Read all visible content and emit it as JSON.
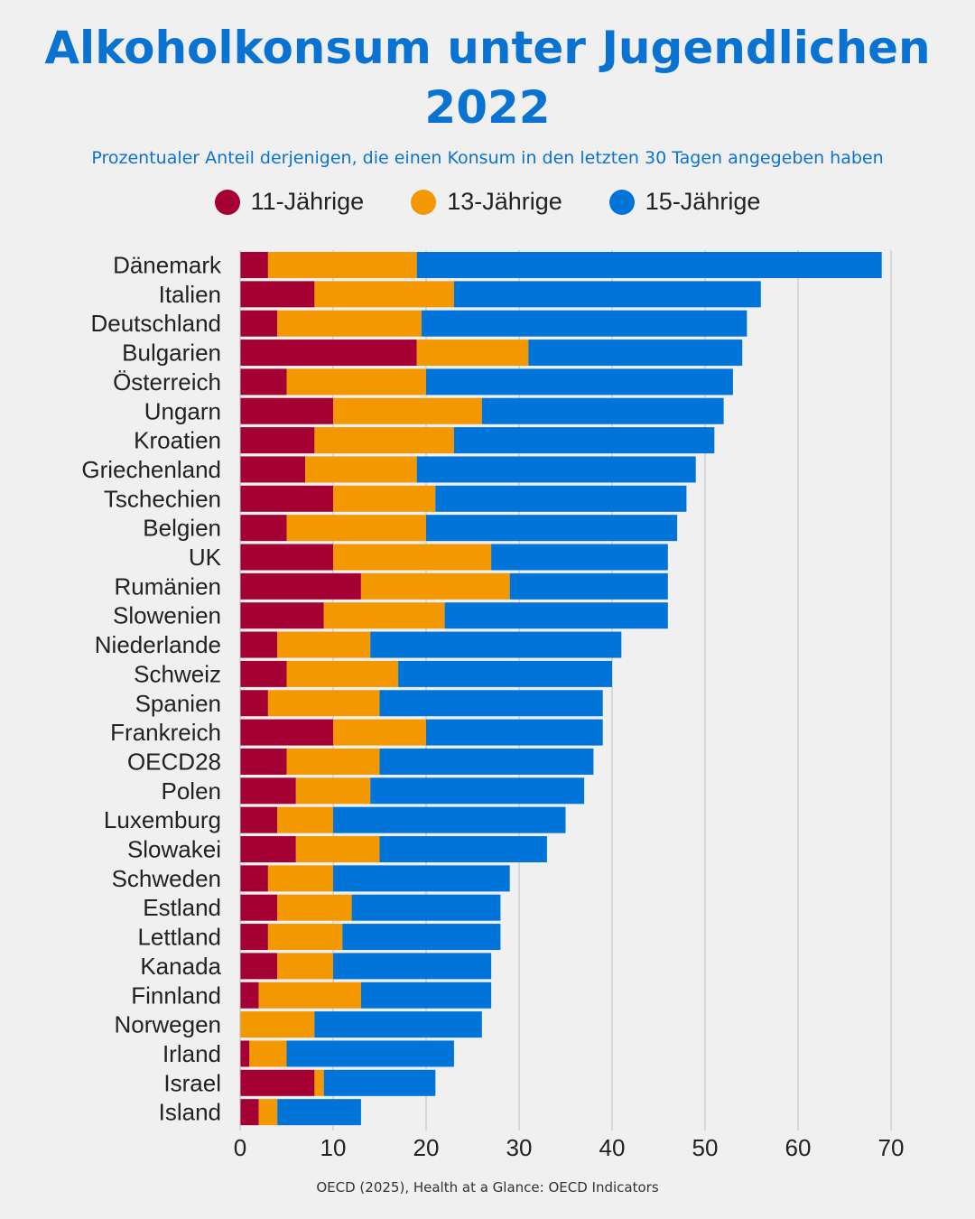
{
  "chart_data": {
    "type": "bar",
    "orientation": "horizontal",
    "stacked": true,
    "title": "Alkoholkonsum unter Jugendlichen 2022",
    "subtitle": "Prozentualer Anteil derjenigen, die einen Konsum in den letzten 30 Tagen angegeben haben",
    "source": "OECD (2025), Health at a Glance: OECD Indicators",
    "legend_position": "top",
    "grid": true,
    "xlim": [
      0,
      70
    ],
    "xticks": [
      "0",
      "10",
      "20",
      "30",
      "40",
      "50",
      "60",
      "70"
    ],
    "categories": [
      "Dänemark",
      "Italien",
      "Deutschland",
      "Bulgarien",
      "Österreich",
      "Ungarn",
      "Kroatien",
      "Griechenland",
      "Tschechien",
      "Belgien",
      "UK",
      "Rumänien",
      "Slowenien",
      "Niederlande",
      "Schweiz",
      "Spanien",
      "Frankreich",
      "OECD28",
      "Polen",
      "Luxemburg",
      "Slowakei",
      "Schweden",
      "Estland",
      "Lettland",
      "Kanada",
      "Finnland",
      "Norwegen",
      "Irland",
      "Israel",
      "Island"
    ],
    "series": [
      {
        "name": "11-Jährige",
        "color": "#a50034",
        "values": [
          3,
          8,
          4,
          19,
          5,
          10,
          8,
          7,
          10,
          5,
          10,
          13,
          9,
          4,
          5,
          3,
          10,
          5,
          6,
          4,
          6,
          3,
          4,
          3,
          4,
          2,
          0,
          1,
          8,
          2
        ]
      },
      {
        "name": "13-Jährige",
        "color": "#f39800",
        "values": [
          16,
          15,
          15.5,
          12,
          15,
          16,
          15,
          12,
          11,
          15,
          17,
          16,
          13,
          10,
          12,
          12,
          10,
          10,
          8,
          6,
          9,
          7,
          8,
          8,
          6,
          11,
          8,
          4,
          1,
          2
        ]
      },
      {
        "name": "15-Jährige",
        "color": "#0074d9",
        "values": [
          50,
          33,
          35,
          23,
          33,
          26,
          28,
          30,
          27,
          27,
          19,
          17,
          24,
          27,
          23,
          24,
          19,
          23,
          23,
          25,
          18,
          19,
          16,
          17,
          17,
          14,
          18,
          18,
          12,
          9
        ]
      }
    ]
  }
}
